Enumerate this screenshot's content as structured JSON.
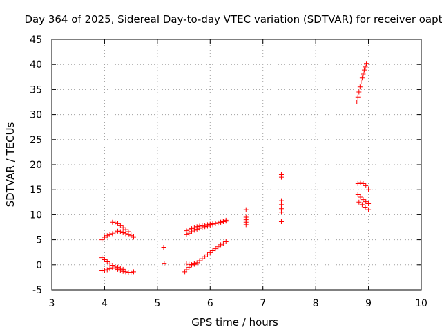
{
  "chart_data": {
    "type": "scatter",
    "title": "Day 364 of 2025, Sidereal Day-to-day VTEC variation (SDTVAR) for receiver oapt",
    "xlabel": "GPS time / hours",
    "ylabel": "SDTVAR / TECUs",
    "xlim": [
      3,
      10
    ],
    "ylim": [
      -5,
      45
    ],
    "xticks": [
      "3",
      "4",
      "5",
      "6",
      "7",
      "8",
      "9",
      "10"
    ],
    "yticks": [
      "-5",
      "0",
      "5",
      "10",
      "15",
      "20",
      "25",
      "30",
      "35",
      "40",
      "45"
    ],
    "grid": true,
    "marker": "plus",
    "color": "#ff0000",
    "series": [
      {
        "x": [
          3.95,
          4.0,
          4.05,
          4.1,
          4.15,
          4.2,
          4.25,
          4.3,
          4.35,
          4.4,
          4.45,
          4.5,
          4.55,
          4.15,
          4.2,
          4.25,
          4.3,
          4.35,
          4.4,
          4.45,
          4.5,
          4.55,
          3.95,
          4.0,
          4.05,
          4.1,
          4.15,
          4.2,
          4.25,
          4.3,
          4.35,
          4.4,
          4.45,
          4.5,
          4.55,
          3.95,
          4.0,
          4.05,
          4.1,
          4.15,
          4.2,
          4.25,
          4.3,
          4.35,
          5.12,
          5.13,
          5.55,
          5.6,
          5.65,
          5.7,
          5.75,
          5.8,
          5.85,
          5.9,
          5.95,
          6.0,
          6.05,
          6.1,
          6.15,
          6.2,
          6.25,
          6.3,
          5.55,
          5.6,
          5.65,
          5.7,
          5.75,
          5.8,
          5.85,
          5.9,
          5.95,
          6.0,
          6.05,
          6.1,
          6.15,
          6.2,
          6.25,
          6.3,
          5.55,
          5.6,
          5.65,
          5.7,
          5.75,
          5.8,
          5.85,
          5.9,
          5.95,
          6.0,
          6.05,
          6.1,
          6.15,
          6.2,
          6.25,
          6.3,
          5.52,
          5.55,
          5.6,
          5.65,
          5.7,
          6.68,
          6.68,
          6.68,
          6.68,
          6.68,
          7.35,
          7.35,
          7.35,
          7.35,
          7.35,
          7.35,
          7.35,
          8.78,
          8.8,
          8.82,
          8.84,
          8.86,
          8.88,
          8.9,
          8.92,
          8.94,
          8.96,
          8.8,
          8.85,
          8.9,
          8.95,
          9.0,
          8.8,
          8.85,
          8.9,
          8.95,
          9.0,
          8.82,
          8.88,
          8.94,
          9.0
        ],
        "y": [
          5.0,
          5.5,
          5.8,
          6.0,
          6.2,
          6.5,
          6.7,
          6.6,
          6.4,
          6.2,
          6.0,
          5.8,
          5.5,
          8.5,
          8.4,
          8.2,
          7.8,
          7.4,
          7.0,
          6.6,
          6.1,
          5.6,
          -1.2,
          -1.1,
          -1.0,
          -0.8,
          -0.6,
          -0.7,
          -0.9,
          -1.1,
          -1.3,
          -1.4,
          -1.5,
          -1.5,
          -1.4,
          1.4,
          1.0,
          0.6,
          0.2,
          -0.1,
          -0.3,
          -0.5,
          -0.7,
          -0.9,
          3.5,
          0.3,
          6.8,
          7.0,
          7.2,
          7.4,
          7.6,
          7.7,
          7.8,
          7.9,
          8.0,
          8.1,
          8.2,
          8.3,
          8.4,
          8.5,
          8.6,
          8.7,
          6.0,
          6.3,
          6.6,
          6.9,
          7.1,
          7.3,
          7.4,
          7.6,
          7.7,
          7.9,
          8.0,
          8.2,
          8.3,
          8.5,
          8.7,
          8.9,
          0.2,
          0.1,
          0.0,
          0.1,
          0.4,
          0.8,
          1.2,
          1.6,
          2.0,
          2.4,
          2.8,
          3.2,
          3.6,
          4.0,
          4.3,
          4.6,
          -1.4,
          -1.0,
          -0.5,
          0.0,
          0.3,
          11.0,
          9.5,
          9.0,
          8.5,
          8.0,
          18.0,
          17.5,
          12.8,
          12.0,
          11.2,
          10.5,
          8.6,
          32.5,
          33.5,
          34.5,
          35.5,
          36.5,
          37.3,
          38.1,
          38.9,
          39.5,
          40.2,
          16.2,
          16.4,
          16.2,
          15.8,
          15.0,
          14.0,
          13.5,
          13.0,
          12.6,
          12.2,
          12.5,
          12.0,
          11.5,
          11.0
        ]
      }
    ]
  }
}
